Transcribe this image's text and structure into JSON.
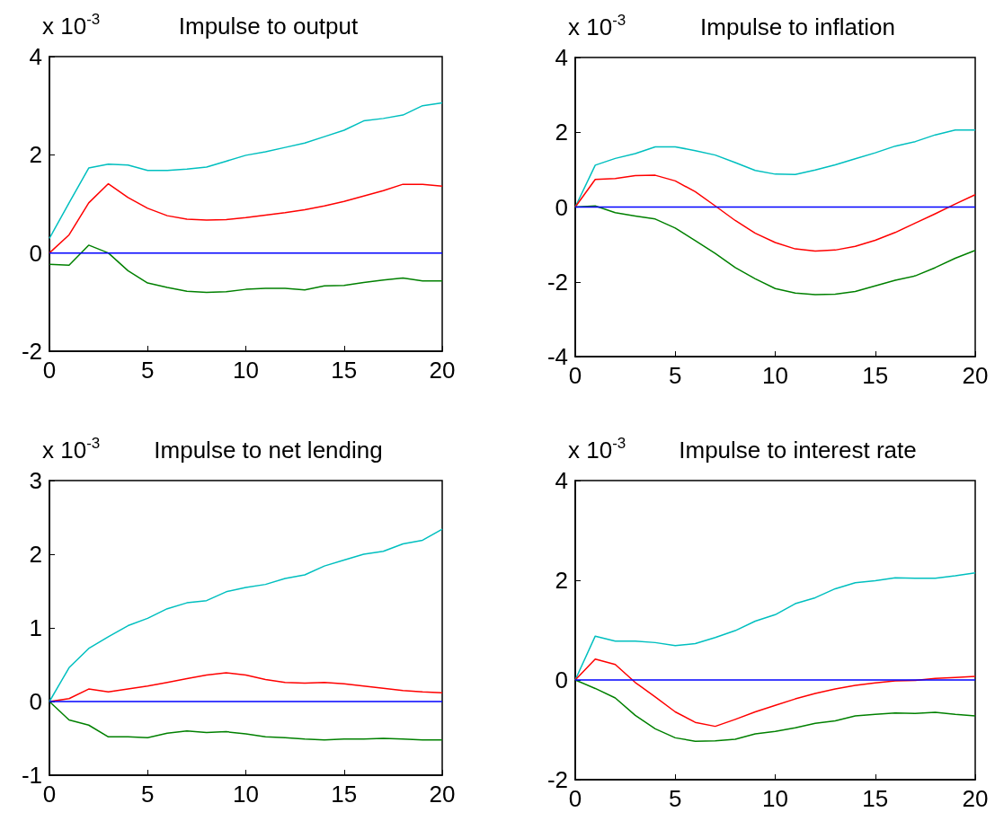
{
  "chart_data": [
    {
      "type": "line",
      "title": "Impulse to output",
      "ylabel": "x 10$^{-3}$",
      "x": [
        0,
        1,
        2,
        3,
        4,
        5,
        6,
        7,
        8,
        9,
        10,
        11,
        12,
        13,
        14,
        15,
        16,
        17,
        18,
        19,
        20
      ],
      "xlim": [
        0,
        20
      ],
      "xticks": [
        0,
        5,
        10,
        15,
        20
      ],
      "ylim": [
        -2,
        4
      ],
      "yticks": [
        -2,
        0,
        2,
        4
      ],
      "series": [
        {
          "color": "#00bfbf",
          "values": [
            0.3,
            1.02,
            1.73,
            1.81,
            1.79,
            1.68,
            1.68,
            1.71,
            1.75,
            1.87,
            1.99,
            2.06,
            2.15,
            2.24,
            2.37,
            2.5,
            2.69,
            2.74,
            2.81,
            3.0,
            3.06
          ]
        },
        {
          "color": "#ff0000",
          "values": [
            0,
            0.37,
            1.02,
            1.41,
            1.13,
            0.91,
            0.76,
            0.69,
            0.67,
            0.68,
            0.72,
            0.77,
            0.82,
            0.88,
            0.96,
            1.05,
            1.16,
            1.27,
            1.4,
            1.4,
            1.36
          ]
        },
        {
          "color": "#008000",
          "values": [
            -0.23,
            -0.25,
            0.16,
            0.0,
            -0.36,
            -0.61,
            -0.7,
            -0.78,
            -0.8,
            -0.79,
            -0.74,
            -0.72,
            -0.72,
            -0.75,
            -0.67,
            -0.66,
            -0.6,
            -0.55,
            -0.51,
            -0.57,
            -0.57
          ]
        },
        {
          "color": "#0000ff",
          "values": [
            0,
            0,
            0,
            0,
            0,
            0,
            0,
            0,
            0,
            0,
            0,
            0,
            0,
            0,
            0,
            0,
            0,
            0,
            0,
            0,
            0
          ]
        }
      ]
    },
    {
      "type": "line",
      "title": "Impulse to inflation",
      "ylabel": "x 10$^{-3}$",
      "x": [
        0,
        1,
        2,
        3,
        4,
        5,
        6,
        7,
        8,
        9,
        10,
        11,
        12,
        13,
        14,
        15,
        16,
        17,
        18,
        19,
        20
      ],
      "xlim": [
        0,
        20
      ],
      "xticks": [
        0,
        5,
        10,
        15,
        20
      ],
      "ylim": [
        -4,
        4
      ],
      "yticks": [
        -4,
        -2,
        0,
        2,
        4
      ],
      "series": [
        {
          "color": "#00bfbf",
          "values": [
            0,
            1.12,
            1.3,
            1.43,
            1.61,
            1.61,
            1.51,
            1.39,
            1.19,
            0.98,
            0.88,
            0.87,
            0.99,
            1.13,
            1.29,
            1.45,
            1.63,
            1.75,
            1.93,
            2.06,
            2.06
          ]
        },
        {
          "color": "#ff0000",
          "values": [
            0,
            0.74,
            0.76,
            0.84,
            0.85,
            0.7,
            0.41,
            0.03,
            -0.36,
            -0.7,
            -0.95,
            -1.12,
            -1.18,
            -1.15,
            -1.05,
            -0.89,
            -0.68,
            -0.43,
            -0.18,
            0.08,
            0.33
          ]
        },
        {
          "color": "#008000",
          "values": [
            0,
            0.03,
            -0.15,
            -0.24,
            -0.32,
            -0.56,
            -0.9,
            -1.24,
            -1.62,
            -1.92,
            -2.18,
            -2.3,
            -2.34,
            -2.33,
            -2.26,
            -2.11,
            -1.96,
            -1.84,
            -1.62,
            -1.37,
            -1.16
          ]
        },
        {
          "color": "#0000ff",
          "values": [
            0,
            0,
            0,
            0,
            0,
            0,
            0,
            0,
            0,
            0,
            0,
            0,
            0,
            0,
            0,
            0,
            0,
            0,
            0,
            0,
            0
          ]
        }
      ]
    },
    {
      "type": "line",
      "title": "Impulse to net lending",
      "ylabel": "x 10$^{-3}$",
      "x": [
        0,
        1,
        2,
        3,
        4,
        5,
        6,
        7,
        8,
        9,
        10,
        11,
        12,
        13,
        14,
        15,
        16,
        17,
        18,
        19,
        20
      ],
      "xlim": [
        0,
        20
      ],
      "xticks": [
        0,
        5,
        10,
        15,
        20
      ],
      "ylim": [
        -1,
        3
      ],
      "yticks": [
        -1,
        0,
        1,
        2,
        3
      ],
      "series": [
        {
          "color": "#00bfbf",
          "values": [
            0,
            0.46,
            0.72,
            0.88,
            1.03,
            1.13,
            1.26,
            1.34,
            1.37,
            1.49,
            1.55,
            1.59,
            1.67,
            1.72,
            1.84,
            1.92,
            2.0,
            2.04,
            2.14,
            2.19,
            2.34
          ]
        },
        {
          "color": "#ff0000",
          "values": [
            0,
            0.04,
            0.17,
            0.13,
            0.17,
            0.21,
            0.26,
            0.31,
            0.36,
            0.39,
            0.36,
            0.3,
            0.26,
            0.25,
            0.26,
            0.24,
            0.21,
            0.18,
            0.15,
            0.13,
            0.12
          ]
        },
        {
          "color": "#008000",
          "values": [
            0,
            -0.25,
            -0.32,
            -0.48,
            -0.48,
            -0.49,
            -0.43,
            -0.4,
            -0.42,
            -0.41,
            -0.44,
            -0.48,
            -0.49,
            -0.51,
            -0.52,
            -0.51,
            -0.51,
            -0.5,
            -0.51,
            -0.52,
            -0.52
          ]
        },
        {
          "color": "#0000ff",
          "values": [
            0,
            0,
            0,
            0,
            0,
            0,
            0,
            0,
            0,
            0,
            0,
            0,
            0,
            0,
            0,
            0,
            0,
            0,
            0,
            0,
            0
          ]
        }
      ]
    },
    {
      "type": "line",
      "title": "Impulse to interest rate",
      "ylabel": "x 10$^{-3}$",
      "x": [
        0,
        1,
        2,
        3,
        4,
        5,
        6,
        7,
        8,
        9,
        10,
        11,
        12,
        13,
        14,
        15,
        16,
        17,
        18,
        19,
        20
      ],
      "xlim": [
        0,
        20
      ],
      "xticks": [
        0,
        5,
        10,
        15,
        20
      ],
      "ylim": [
        -2,
        4
      ],
      "yticks": [
        -2,
        0,
        2,
        4
      ],
      "series": [
        {
          "color": "#00bfbf",
          "values": [
            0,
            0.88,
            0.78,
            0.78,
            0.75,
            0.69,
            0.73,
            0.85,
            0.99,
            1.18,
            1.31,
            1.53,
            1.65,
            1.83,
            1.95,
            1.99,
            2.05,
            2.04,
            2.04,
            2.09,
            2.15
          ]
        },
        {
          "color": "#ff0000",
          "values": [
            0,
            0.42,
            0.31,
            -0.05,
            -0.34,
            -0.64,
            -0.85,
            -0.93,
            -0.79,
            -0.64,
            -0.51,
            -0.38,
            -0.27,
            -0.18,
            -0.11,
            -0.06,
            -0.02,
            -0.01,
            0.03,
            0.05,
            0.07
          ]
        },
        {
          "color": "#008000",
          "values": [
            0,
            -0.17,
            -0.36,
            -0.71,
            -0.98,
            -1.16,
            -1.23,
            -1.22,
            -1.19,
            -1.08,
            -1.03,
            -0.96,
            -0.87,
            -0.82,
            -0.72,
            -0.69,
            -0.66,
            -0.67,
            -0.65,
            -0.69,
            -0.72
          ]
        },
        {
          "color": "#0000ff",
          "values": [
            0,
            0,
            0,
            0,
            0,
            0,
            0,
            0,
            0,
            0,
            0,
            0,
            0,
            0,
            0,
            0,
            0,
            0,
            0,
            0,
            0
          ]
        }
      ]
    }
  ]
}
